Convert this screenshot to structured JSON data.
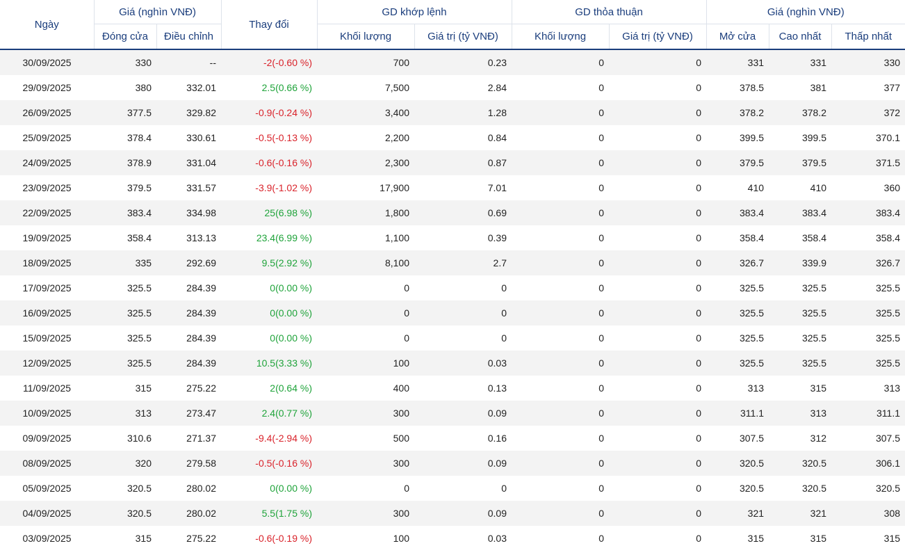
{
  "header": {
    "date": "Ngày",
    "price_group": "Giá (nghìn VNĐ)",
    "close": "Đóng cửa",
    "adjusted": "Điều chỉnh",
    "change": "Thay đổi",
    "matched_group": "GD khớp lệnh",
    "matched_volume": "Khối lượng",
    "matched_value": "Giá trị (tỷ VNĐ)",
    "negotiated_group": "GD thỏa thuận",
    "negotiated_volume": "Khối lượng",
    "negotiated_value": "Giá trị (tỷ VNĐ)",
    "price_group2": "Giá (nghìn VNĐ)",
    "open": "Mở cửa",
    "high": "Cao nhất",
    "low": "Thấp nhất"
  },
  "colors": {
    "header_text": "#1a3d7c",
    "up": "#1fa33a",
    "down": "#d9222a",
    "stripe": "#f3f3f3"
  },
  "rows": [
    {
      "date": "30/09/2025",
      "close": "330",
      "adj": "--",
      "change": "-2(-0.60 %)",
      "dir": "down",
      "mvol": "700",
      "mval": "0.23",
      "nvol": "0",
      "nval": "0",
      "open": "331",
      "high": "331",
      "low": "330"
    },
    {
      "date": "29/09/2025",
      "close": "380",
      "adj": "332.01",
      "change": "2.5(0.66 %)",
      "dir": "up",
      "mvol": "7,500",
      "mval": "2.84",
      "nvol": "0",
      "nval": "0",
      "open": "378.5",
      "high": "381",
      "low": "377"
    },
    {
      "date": "26/09/2025",
      "close": "377.5",
      "adj": "329.82",
      "change": "-0.9(-0.24 %)",
      "dir": "down",
      "mvol": "3,400",
      "mval": "1.28",
      "nvol": "0",
      "nval": "0",
      "open": "378.2",
      "high": "378.2",
      "low": "372"
    },
    {
      "date": "25/09/2025",
      "close": "378.4",
      "adj": "330.61",
      "change": "-0.5(-0.13 %)",
      "dir": "down",
      "mvol": "2,200",
      "mval": "0.84",
      "nvol": "0",
      "nval": "0",
      "open": "399.5",
      "high": "399.5",
      "low": "370.1"
    },
    {
      "date": "24/09/2025",
      "close": "378.9",
      "adj": "331.04",
      "change": "-0.6(-0.16 %)",
      "dir": "down",
      "mvol": "2,300",
      "mval": "0.87",
      "nvol": "0",
      "nval": "0",
      "open": "379.5",
      "high": "379.5",
      "low": "371.5"
    },
    {
      "date": "23/09/2025",
      "close": "379.5",
      "adj": "331.57",
      "change": "-3.9(-1.02 %)",
      "dir": "down",
      "mvol": "17,900",
      "mval": "7.01",
      "nvol": "0",
      "nval": "0",
      "open": "410",
      "high": "410",
      "low": "360"
    },
    {
      "date": "22/09/2025",
      "close": "383.4",
      "adj": "334.98",
      "change": "25(6.98 %)",
      "dir": "up",
      "mvol": "1,800",
      "mval": "0.69",
      "nvol": "0",
      "nval": "0",
      "open": "383.4",
      "high": "383.4",
      "low": "383.4"
    },
    {
      "date": "19/09/2025",
      "close": "358.4",
      "adj": "313.13",
      "change": "23.4(6.99 %)",
      "dir": "up",
      "mvol": "1,100",
      "mval": "0.39",
      "nvol": "0",
      "nval": "0",
      "open": "358.4",
      "high": "358.4",
      "low": "358.4"
    },
    {
      "date": "18/09/2025",
      "close": "335",
      "adj": "292.69",
      "change": "9.5(2.92 %)",
      "dir": "up",
      "mvol": "8,100",
      "mval": "2.7",
      "nvol": "0",
      "nval": "0",
      "open": "326.7",
      "high": "339.9",
      "low": "326.7"
    },
    {
      "date": "17/09/2025",
      "close": "325.5",
      "adj": "284.39",
      "change": "0(0.00 %)",
      "dir": "flat",
      "mvol": "0",
      "mval": "0",
      "nvol": "0",
      "nval": "0",
      "open": "325.5",
      "high": "325.5",
      "low": "325.5"
    },
    {
      "date": "16/09/2025",
      "close": "325.5",
      "adj": "284.39",
      "change": "0(0.00 %)",
      "dir": "flat",
      "mvol": "0",
      "mval": "0",
      "nvol": "0",
      "nval": "0",
      "open": "325.5",
      "high": "325.5",
      "low": "325.5"
    },
    {
      "date": "15/09/2025",
      "close": "325.5",
      "adj": "284.39",
      "change": "0(0.00 %)",
      "dir": "flat",
      "mvol": "0",
      "mval": "0",
      "nvol": "0",
      "nval": "0",
      "open": "325.5",
      "high": "325.5",
      "low": "325.5"
    },
    {
      "date": "12/09/2025",
      "close": "325.5",
      "adj": "284.39",
      "change": "10.5(3.33 %)",
      "dir": "up",
      "mvol": "100",
      "mval": "0.03",
      "nvol": "0",
      "nval": "0",
      "open": "325.5",
      "high": "325.5",
      "low": "325.5"
    },
    {
      "date": "11/09/2025",
      "close": "315",
      "adj": "275.22",
      "change": "2(0.64 %)",
      "dir": "up",
      "mvol": "400",
      "mval": "0.13",
      "nvol": "0",
      "nval": "0",
      "open": "313",
      "high": "315",
      "low": "313"
    },
    {
      "date": "10/09/2025",
      "close": "313",
      "adj": "273.47",
      "change": "2.4(0.77 %)",
      "dir": "up",
      "mvol": "300",
      "mval": "0.09",
      "nvol": "0",
      "nval": "0",
      "open": "311.1",
      "high": "313",
      "low": "311.1"
    },
    {
      "date": "09/09/2025",
      "close": "310.6",
      "adj": "271.37",
      "change": "-9.4(-2.94 %)",
      "dir": "down",
      "mvol": "500",
      "mval": "0.16",
      "nvol": "0",
      "nval": "0",
      "open": "307.5",
      "high": "312",
      "low": "307.5"
    },
    {
      "date": "08/09/2025",
      "close": "320",
      "adj": "279.58",
      "change": "-0.5(-0.16 %)",
      "dir": "down",
      "mvol": "300",
      "mval": "0.09",
      "nvol": "0",
      "nval": "0",
      "open": "320.5",
      "high": "320.5",
      "low": "306.1"
    },
    {
      "date": "05/09/2025",
      "close": "320.5",
      "adj": "280.02",
      "change": "0(0.00 %)",
      "dir": "flat",
      "mvol": "0",
      "mval": "0",
      "nvol": "0",
      "nval": "0",
      "open": "320.5",
      "high": "320.5",
      "low": "320.5"
    },
    {
      "date": "04/09/2025",
      "close": "320.5",
      "adj": "280.02",
      "change": "5.5(1.75 %)",
      "dir": "up",
      "mvol": "300",
      "mval": "0.09",
      "nvol": "0",
      "nval": "0",
      "open": "321",
      "high": "321",
      "low": "308"
    },
    {
      "date": "03/09/2025",
      "close": "315",
      "adj": "275.22",
      "change": "-0.6(-0.19 %)",
      "dir": "down",
      "mvol": "100",
      "mval": "0.03",
      "nvol": "0",
      "nval": "0",
      "open": "315",
      "high": "315",
      "low": "315"
    }
  ]
}
